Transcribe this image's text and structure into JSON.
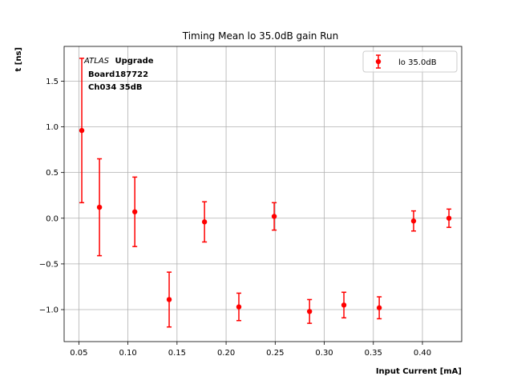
{
  "chart_data": {
    "type": "scatter",
    "title": "Timing Mean lo 35.0dB gain Run",
    "xlabel": "Input Current [mA]",
    "ylabel": "t [ns]",
    "xlim": [
      0.035,
      0.44
    ],
    "ylim": [
      -1.35,
      1.88
    ],
    "xticks": [
      0.05,
      0.1,
      0.15,
      0.2,
      0.25,
      0.3,
      0.35,
      0.4
    ],
    "xtick_labels": [
      "0.05",
      "0.10",
      "0.15",
      "0.20",
      "0.25",
      "0.30",
      "0.35",
      "0.40"
    ],
    "yticks": [
      -1.0,
      -0.5,
      0.0,
      0.5,
      1.0,
      1.5
    ],
    "ytick_labels": [
      "−1.0",
      "−0.5",
      "0.0",
      "0.5",
      "1.0",
      "1.5"
    ],
    "grid": true,
    "legend_position": "top-right",
    "color": "#ff0000",
    "series": [
      {
        "name": "lo 35.0dB",
        "x": [
          0.053,
          0.071,
          0.107,
          0.142,
          0.178,
          0.213,
          0.249,
          0.285,
          0.32,
          0.356,
          0.391,
          0.427
        ],
        "y": [
          0.96,
          0.12,
          0.07,
          -0.89,
          -0.04,
          -0.97,
          0.02,
          -1.02,
          -0.95,
          -0.98,
          -0.03,
          0.0
        ],
        "err": [
          0.79,
          0.53,
          0.38,
          0.3,
          0.22,
          0.15,
          0.15,
          0.13,
          0.14,
          0.12,
          0.11,
          0.1
        ]
      }
    ],
    "annotation": {
      "line1_italic": "ATLAS",
      "line1_bold": "Upgrade",
      "line2": "Board187722",
      "line3": "Ch034 35dB"
    }
  }
}
